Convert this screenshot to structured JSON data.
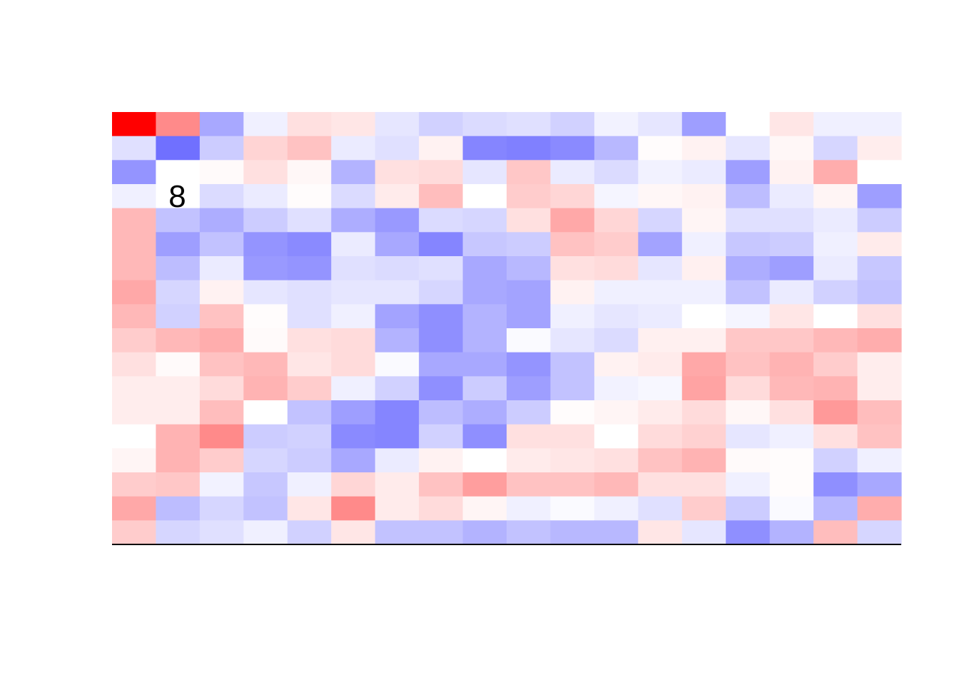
{
  "chart_data": {
    "type": "heatmap",
    "title": "",
    "xlabel": "",
    "ylabel": "",
    "n_rows": 18,
    "n_cols": 18,
    "value_range": [
      -1,
      1
    ],
    "color_low": "#0000ff",
    "color_mid": "#ffffff",
    "color_high": "#ff0000",
    "axis_color": "#000000",
    "values": [
      [
        1.0,
        0.46,
        -0.34,
        -0.06,
        0.12,
        0.1,
        -0.1,
        -0.18,
        -0.14,
        -0.12,
        -0.18,
        -0.05,
        -0.1,
        -0.38,
        0.0,
        0.1,
        -0.06,
        -0.06
      ],
      [
        -0.12,
        -0.56,
        -0.2,
        0.17,
        0.24,
        -0.08,
        -0.12,
        0.05,
        -0.48,
        -0.5,
        -0.46,
        -0.28,
        0.01,
        0.05,
        -0.1,
        0.03,
        -0.16,
        0.07
      ],
      [
        -0.42,
        0.0,
        0.02,
        0.12,
        0.03,
        -0.3,
        0.12,
        0.14,
        -0.1,
        0.22,
        -0.08,
        -0.14,
        -0.05,
        -0.08,
        -0.38,
        0.05,
        0.32,
        0.0
      ],
      [
        -0.06,
        0.0,
        -0.14,
        -0.08,
        0.01,
        -0.14,
        0.08,
        0.26,
        0.0,
        0.2,
        0.16,
        -0.04,
        0.03,
        0.05,
        -0.26,
        -0.08,
        0.04,
        -0.38
      ],
      [
        0.28,
        -0.24,
        -0.32,
        -0.2,
        -0.12,
        -0.32,
        -0.4,
        -0.14,
        -0.16,
        0.12,
        0.34,
        0.16,
        -0.16,
        0.04,
        -0.12,
        -0.12,
        -0.08,
        -0.2
      ],
      [
        0.28,
        -0.38,
        -0.24,
        -0.42,
        -0.46,
        -0.08,
        -0.34,
        -0.48,
        -0.22,
        -0.2,
        0.24,
        0.2,
        -0.36,
        -0.06,
        -0.22,
        -0.2,
        -0.06,
        0.08
      ],
      [
        0.28,
        -0.26,
        -0.08,
        -0.4,
        -0.42,
        -0.12,
        -0.14,
        -0.12,
        -0.34,
        -0.28,
        0.12,
        0.14,
        -0.1,
        0.06,
        -0.32,
        -0.38,
        -0.08,
        -0.22
      ],
      [
        0.34,
        -0.16,
        0.05,
        -0.1,
        -0.12,
        -0.1,
        -0.1,
        -0.16,
        -0.34,
        -0.36,
        0.05,
        -0.06,
        -0.06,
        -0.06,
        -0.24,
        -0.08,
        -0.18,
        -0.24
      ],
      [
        0.28,
        -0.18,
        0.24,
        0.01,
        -0.12,
        -0.06,
        -0.36,
        -0.44,
        -0.3,
        -0.36,
        -0.06,
        -0.1,
        -0.08,
        0.0,
        -0.04,
        0.1,
        0.0,
        0.12
      ],
      [
        0.2,
        0.28,
        0.32,
        0.02,
        0.12,
        0.14,
        -0.3,
        -0.44,
        -0.3,
        -0.02,
        -0.1,
        -0.14,
        0.06,
        0.06,
        0.22,
        0.22,
        0.28,
        0.32
      ],
      [
        0.12,
        0.02,
        0.24,
        0.28,
        0.1,
        0.14,
        -0.02,
        -0.34,
        -0.34,
        -0.42,
        -0.24,
        0.05,
        0.08,
        0.34,
        0.24,
        0.3,
        0.2,
        0.07
      ],
      [
        0.07,
        0.07,
        0.14,
        0.3,
        0.2,
        -0.06,
        -0.18,
        -0.44,
        -0.2,
        -0.38,
        -0.24,
        -0.05,
        -0.03,
        0.36,
        0.14,
        0.28,
        0.3,
        0.07
      ],
      [
        0.07,
        0.07,
        0.26,
        0.0,
        -0.24,
        -0.38,
        -0.48,
        -0.26,
        -0.32,
        -0.2,
        0.01,
        0.04,
        0.08,
        0.14,
        0.03,
        0.12,
        0.4,
        0.26
      ],
      [
        0.0,
        0.3,
        0.46,
        -0.2,
        -0.18,
        -0.46,
        -0.48,
        -0.18,
        -0.44,
        0.12,
        0.12,
        0.0,
        0.14,
        0.18,
        -0.1,
        -0.06,
        0.12,
        0.24
      ],
      [
        0.04,
        0.3,
        0.2,
        -0.16,
        -0.2,
        -0.34,
        -0.08,
        0.05,
        0.0,
        0.08,
        0.1,
        0.12,
        0.24,
        0.3,
        0.02,
        0.01,
        -0.18,
        -0.06
      ],
      [
        0.2,
        0.22,
        -0.05,
        -0.22,
        -0.06,
        0.16,
        0.08,
        0.24,
        0.38,
        0.24,
        0.24,
        0.28,
        0.12,
        0.12,
        -0.06,
        0.01,
        -0.44,
        -0.34
      ],
      [
        0.34,
        -0.26,
        -0.16,
        -0.24,
        0.1,
        0.46,
        0.08,
        0.14,
        0.04,
        -0.06,
        -0.02,
        -0.06,
        -0.12,
        0.2,
        -0.2,
        -0.02,
        -0.28,
        0.32
      ],
      [
        0.2,
        -0.16,
        -0.12,
        -0.06,
        -0.18,
        0.1,
        -0.24,
        -0.24,
        -0.3,
        -0.24,
        -0.28,
        -0.28,
        0.1,
        -0.1,
        -0.44,
        -0.3,
        0.26,
        -0.16
      ]
    ],
    "annotations": [
      {
        "row": 3,
        "col": 1,
        "text": "8"
      }
    ]
  }
}
